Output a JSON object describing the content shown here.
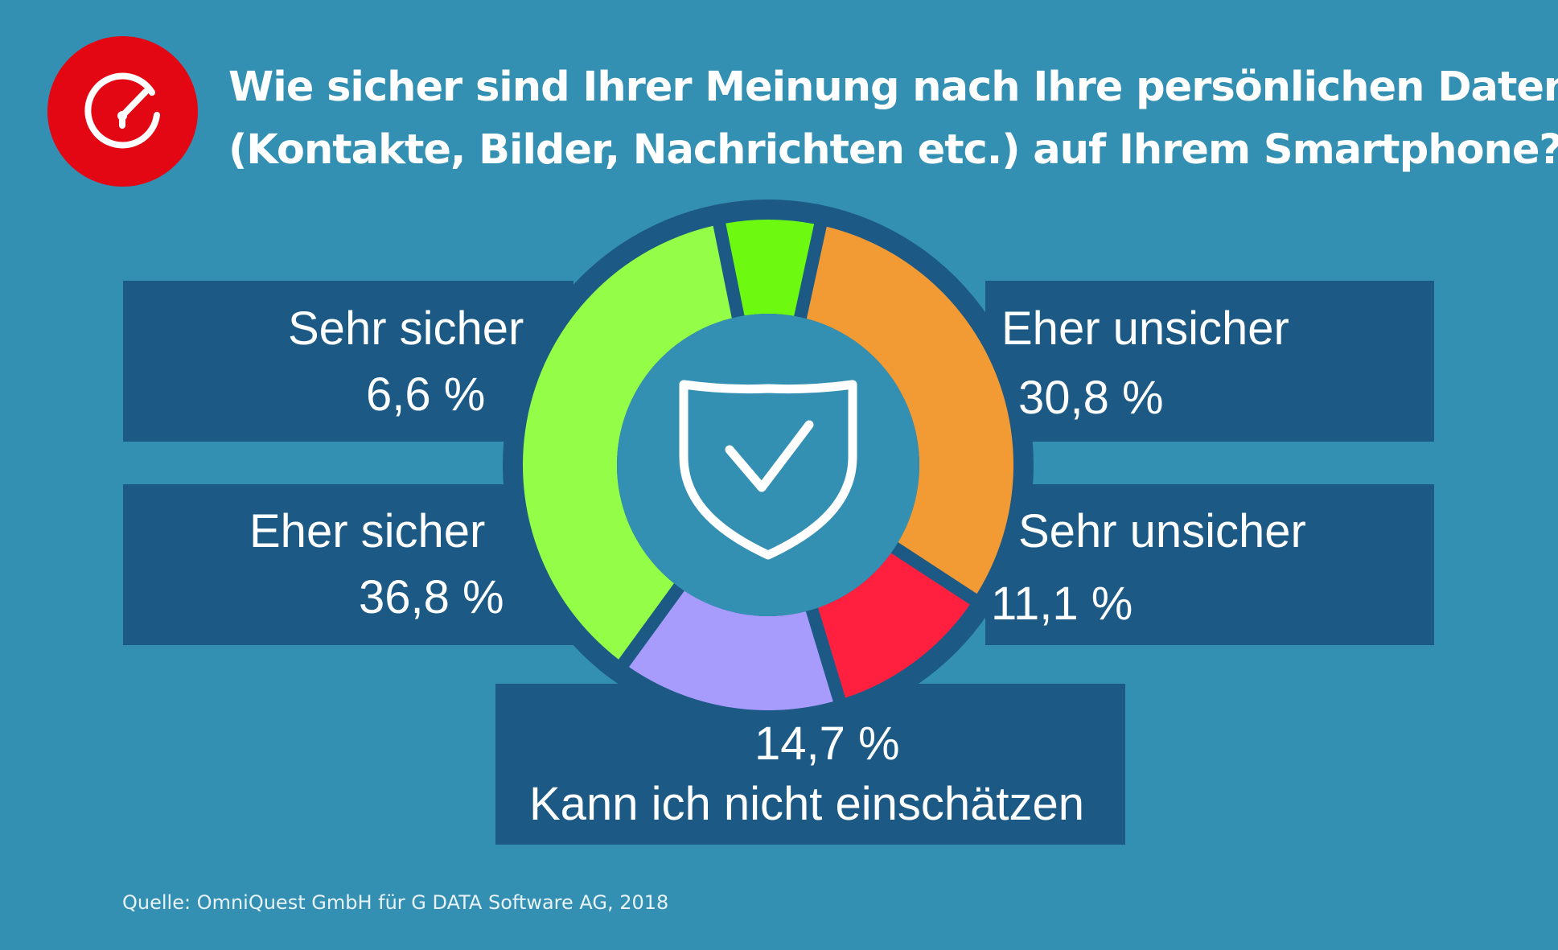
{
  "title": {
    "line1": "Wie sicher sind Ihrer Meinung nach Ihre persönlichen Daten",
    "line2": "(Kontakte, Bilder, Nachrichten etc.) auf Ihrem Smartphone?"
  },
  "icons": {
    "header": "speedometer-icon",
    "center": "shield-check-icon"
  },
  "chart_data": {
    "type": "pie",
    "variant": "donut",
    "unit": "%",
    "categories": [
      "Sehr sicher",
      "Eher unsicher",
      "Sehr unsicher",
      "Kann ich nicht einschätzen",
      "Eher sicher"
    ],
    "values": [
      6.6,
      30.8,
      11.1,
      14.7,
      36.8
    ],
    "value_labels": [
      "6,6 %",
      "30,8 %",
      "11,1 %",
      "14,7 %",
      "36,8 %"
    ],
    "colors": [
      "#6dfa10",
      "#f29a33",
      "#ff2040",
      "#a79cfc",
      "#94fd48"
    ]
  },
  "colors": {
    "background": "#3390b3",
    "panel": "#1c5a85",
    "badge": "#e30613"
  },
  "source": "Quelle: OmniQuest GmbH für G DATA Software AG, 2018"
}
